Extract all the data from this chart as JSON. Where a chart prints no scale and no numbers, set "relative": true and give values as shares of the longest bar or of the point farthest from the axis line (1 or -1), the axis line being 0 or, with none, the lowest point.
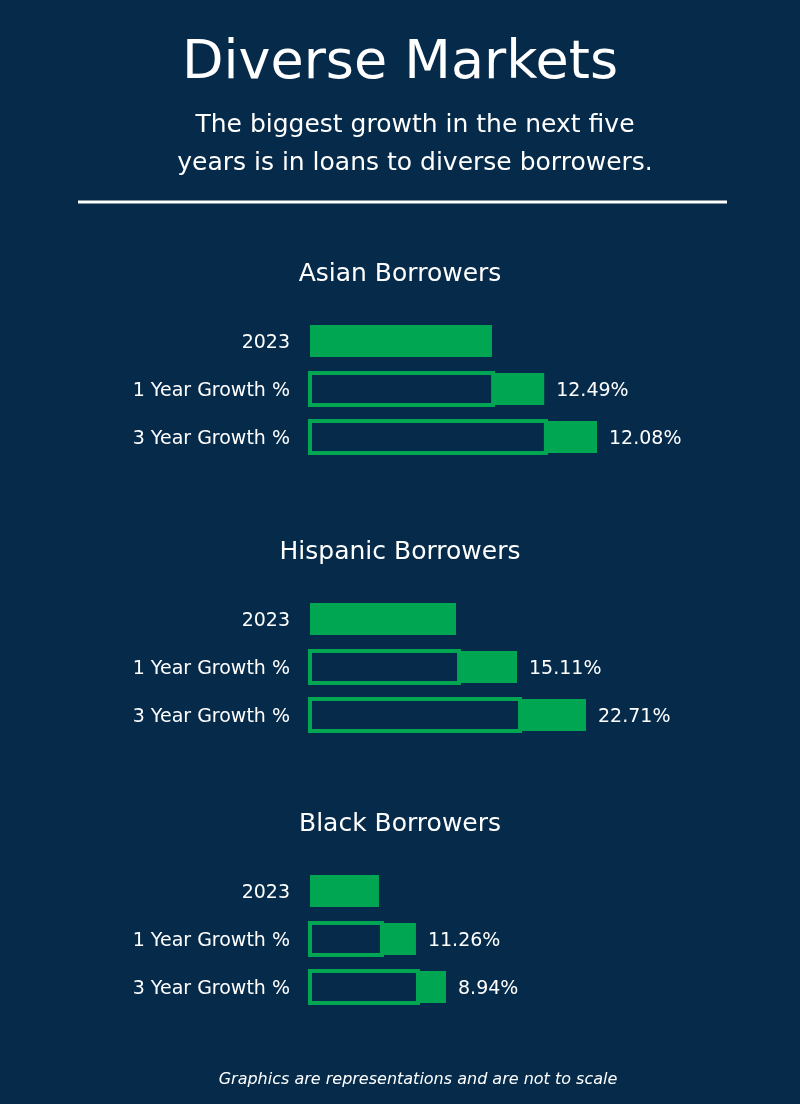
{
  "chart_data": [
    {
      "type": "other",
      "title": "Diverse Markets",
      "subtitle": "The biggest growth in the next five years is in loans to diverse borrowers."
    },
    {
      "type": "bar",
      "title": "Asian Borrowers",
      "orientation": "horizontal",
      "stacked": true,
      "relative": true,
      "categories": [
        "2023",
        "1 Year Growth %",
        "3 Year Growth %"
      ],
      "series": [
        {
          "colors": [
            "#00a651",
            "#062b4a",
            "#062b4a"
          ],
          "values": [
            0.634,
            0.638,
            0.822
          ]
        },
        {
          "color": "#00a651",
          "values": [
            null,
            0.178,
            0.178
          ]
        }
      ],
      "annotations": [
        "12.49%",
        "12.08%"
      ]
    },
    {
      "type": "bar",
      "title": "Hispanic Borrowers",
      "orientation": "horizontal",
      "stacked": true,
      "relative": true,
      "categories": [
        "2023",
        "1 Year Growth %",
        "3 Year Growth %"
      ],
      "series": [
        {
          "colors": [
            "#00a651",
            "#062b4a",
            "#062b4a"
          ],
          "values": [
            0.529,
            0.54,
            0.761
          ]
        },
        {
          "color": "#00a651",
          "values": [
            null,
            0.21,
            0.239
          ]
        }
      ],
      "annotations": [
        "15.11%",
        "22.71%"
      ]
    },
    {
      "type": "bar",
      "title": "Black Borrowers",
      "orientation": "horizontal",
      "stacked": true,
      "relative": true,
      "categories": [
        "2023",
        "1 Year Growth %",
        "3 Year Growth %"
      ],
      "series": [
        {
          "colors": [
            "#00a651",
            "#062b4a",
            "#062b4a"
          ],
          "values": [
            0.507,
            0.529,
            0.794
          ]
        },
        {
          "color": "#00a651",
          "values": [
            null,
            0.25,
            0.206
          ]
        }
      ],
      "annotations": [
        "11.26%",
        "8.94%",
        "Graphics are representations and are not to scale"
      ]
    }
  ]
}
